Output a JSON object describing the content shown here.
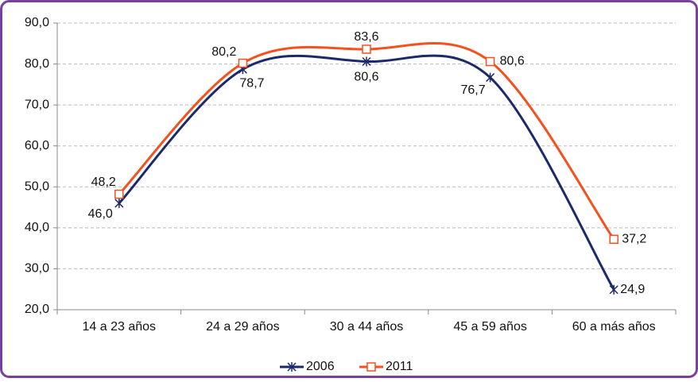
{
  "chart_data": {
    "type": "line",
    "categories": [
      "14 a 23 años",
      "24 a 29 años",
      "30 a 44 años",
      "45 a 59 años",
      "60 a más años"
    ],
    "series": [
      {
        "name": "2006",
        "color": "#1b2a6b",
        "marker": "asterisk",
        "values": [
          46.0,
          78.7,
          80.6,
          76.7,
          24.9
        ],
        "value_labels": [
          "46,0",
          "78,7",
          "80,6",
          "76,7",
          "24,9"
        ]
      },
      {
        "name": "2011",
        "color": "#f4511e",
        "marker": "square",
        "values": [
          48.2,
          80.2,
          83.6,
          80.6,
          37.2
        ],
        "value_labels": [
          "48,2",
          "80,2",
          "83,6",
          "80,6",
          "37,2"
        ]
      }
    ],
    "ylim": [
      20,
      90
    ],
    "yticks": [
      {
        "value": 20,
        "label": "20,0"
      },
      {
        "value": 30,
        "label": "30,0"
      },
      {
        "value": 40,
        "label": "40,0"
      },
      {
        "value": 50,
        "label": "50,0"
      },
      {
        "value": 60,
        "label": "60,0"
      },
      {
        "value": 70,
        "label": "70,0"
      },
      {
        "value": 80,
        "label": "80,0"
      },
      {
        "value": 90,
        "label": "90,0"
      }
    ],
    "grid": true,
    "smooth": true,
    "legend": "bottom"
  }
}
